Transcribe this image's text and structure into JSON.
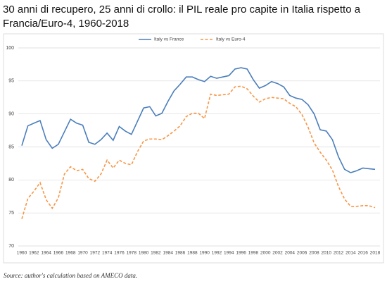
{
  "chart_data": {
    "type": "line",
    "title": "30 anni di recupero, 25 anni di crollo: il PIL reale pro capite in Italia rispetto a Francia/Euro-4, 1960-2018",
    "source": "Source: author's calculation based on AMECO data.",
    "categories": [
      "1960",
      null,
      "1962",
      null,
      "1964",
      null,
      "1966",
      null,
      "1968",
      null,
      "1970",
      null,
      "1972",
      null,
      "1974",
      null,
      "1976",
      null,
      "1978",
      null,
      "1980",
      null,
      "1982",
      null,
      "1984",
      null,
      "1986",
      null,
      "1988",
      null,
      "1990",
      null,
      "1992",
      null,
      "1994",
      null,
      "1996",
      null,
      "1998",
      null,
      "2000",
      null,
      "2002",
      null,
      "2004",
      null,
      "2006",
      null,
      "2008",
      null,
      "2010",
      null,
      "2012",
      null,
      "2014",
      null,
      "2016",
      null,
      "2018"
    ],
    "series": [
      {
        "name": "Italy vs France",
        "color": "#4a7ebb",
        "dash": false,
        "values": [
          85.2,
          88.2,
          88.6,
          89.0,
          86.1,
          84.8,
          85.4,
          87.3,
          89.2,
          88.6,
          88.3,
          85.7,
          85.4,
          86.1,
          87.1,
          86.0,
          88.1,
          87.4,
          86.9,
          88.9,
          90.9,
          91.1,
          89.7,
          90.1,
          91.9,
          93.5,
          94.5,
          95.6,
          95.6,
          95.2,
          94.9,
          95.7,
          95.4,
          95.6,
          95.8,
          96.8,
          97.0,
          96.8,
          95.2,
          93.9,
          94.3,
          94.9,
          94.6,
          94.1,
          92.8,
          92.4,
          92.2,
          91.4,
          90.0,
          87.6,
          87.4,
          86.1,
          83.5,
          81.6,
          81.1,
          81.4,
          81.8,
          81.7,
          81.6
        ]
      },
      {
        "name": "Italy vs Euro-4",
        "color": "#f79646",
        "dash": true,
        "values": [
          74.1,
          77.2,
          78.3,
          79.6,
          77.0,
          75.7,
          77.3,
          80.9,
          82.0,
          81.4,
          81.6,
          80.2,
          79.8,
          80.9,
          83.0,
          81.8,
          83.0,
          82.5,
          82.3,
          84.3,
          85.9,
          86.2,
          86.2,
          86.1,
          86.7,
          87.4,
          88.2,
          89.6,
          90.1,
          90.1,
          89.3,
          93.0,
          92.8,
          92.9,
          93.0,
          94.1,
          94.2,
          93.8,
          92.7,
          91.8,
          92.3,
          92.5,
          92.4,
          92.3,
          91.6,
          91.1,
          89.9,
          88.0,
          85.6,
          84.2,
          83.0,
          81.5,
          79.0,
          77.1,
          76.0,
          76.0,
          76.1,
          76.1,
          75.8
        ]
      }
    ],
    "ylim": [
      70,
      100
    ],
    "yticks": [
      70,
      75,
      80,
      85,
      90,
      95,
      100
    ],
    "grid": true,
    "legend": "top"
  }
}
